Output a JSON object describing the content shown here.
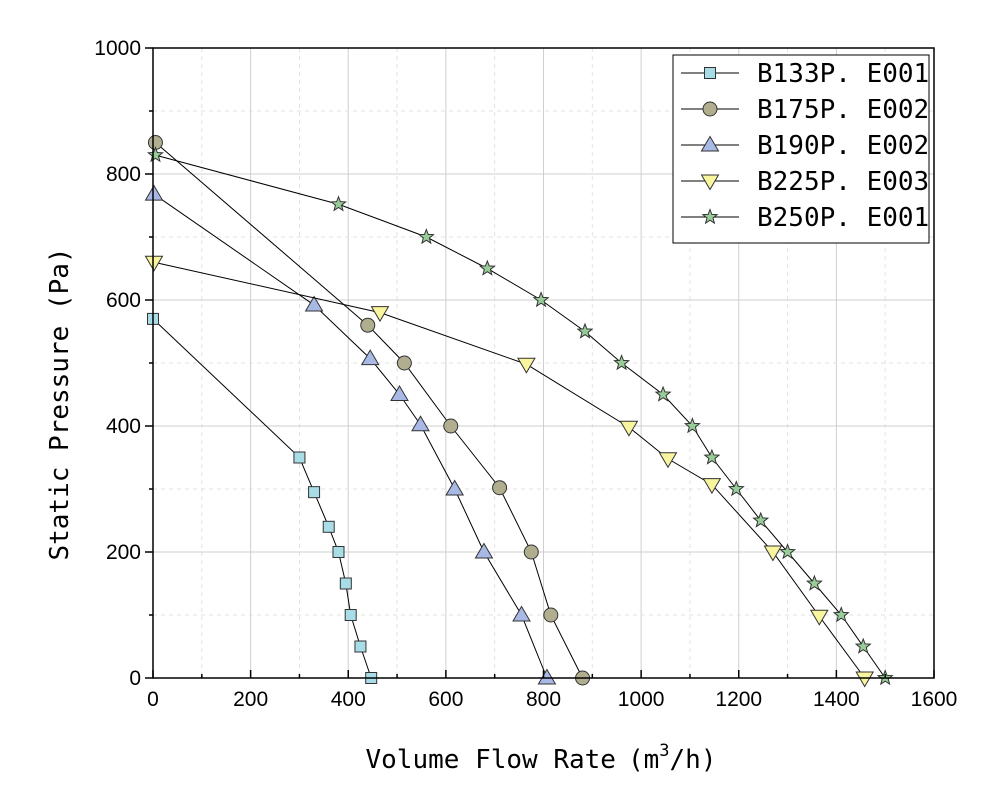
{
  "chart_data": {
    "type": "line",
    "title": "",
    "xlabel": "Volume Flow Rate",
    "xlabel_unit_base": "(m",
    "xlabel_unit_sup": "3",
    "xlabel_unit_tail": "/h)",
    "ylabel": "Static Pressure (Pa)",
    "xlim": [
      0,
      1600
    ],
    "ylim": [
      0,
      1000
    ],
    "xticks": [
      0,
      200,
      400,
      600,
      800,
      1000,
      1200,
      1400,
      1600
    ],
    "yticks": [
      0,
      200,
      400,
      600,
      800,
      1000
    ],
    "grid": true,
    "legend_position": "top-right",
    "series": [
      {
        "name": "B133P. E001",
        "marker": "square",
        "color": "#a8dde8",
        "x": [
          0,
          300,
          330,
          360,
          380,
          395,
          405,
          425,
          447
        ],
        "y": [
          570,
          350,
          295,
          240,
          200,
          150,
          100,
          50,
          0
        ]
      },
      {
        "name": "B175P. E002",
        "marker": "circle",
        "color": "#b0ae8e",
        "x": [
          5,
          440,
          515,
          610,
          710,
          775,
          815,
          880
        ],
        "y": [
          850,
          560,
          500,
          400,
          302,
          200,
          100,
          0
        ]
      },
      {
        "name": "B190P. E002",
        "marker": "triangle-up",
        "color": "#a9b9e6",
        "x": [
          2,
          330,
          445,
          505,
          548,
          618,
          678,
          755,
          807
        ],
        "y": [
          768,
          592,
          507,
          450,
          402,
          300,
          200,
          100,
          0
        ]
      },
      {
        "name": "B225P. E003",
        "marker": "triangle-down",
        "color": "#f8f59e",
        "x": [
          2,
          465,
          765,
          975,
          1055,
          1145,
          1270,
          1365,
          1458
        ],
        "y": [
          660,
          580,
          498,
          398,
          348,
          307,
          200,
          98,
          0
        ]
      },
      {
        "name": "B250P. E001",
        "marker": "star",
        "color": "#98cc98",
        "x": [
          5,
          380,
          560,
          685,
          795,
          885,
          960,
          1045,
          1105,
          1145,
          1195,
          1245,
          1300,
          1355,
          1410,
          1455,
          1500
        ],
        "y": [
          830,
          752,
          700,
          650,
          600,
          550,
          500,
          450,
          400,
          350,
          300,
          250,
          200,
          150,
          100,
          50,
          0
        ]
      }
    ]
  }
}
